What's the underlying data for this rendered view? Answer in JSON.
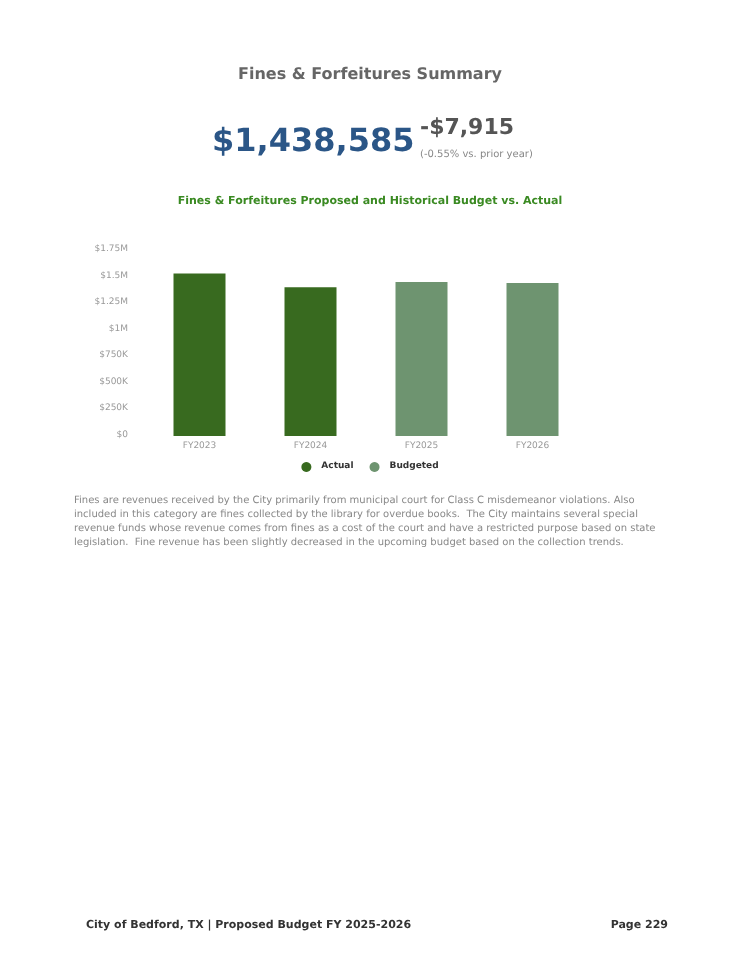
{
  "chart_data": {
    "type": "bar",
    "title": "Fines & Forfeitures Summary",
    "subtitle": "Fines & Forfeitures Proposed and Historical Budget vs. Actual",
    "categories": [
      "FY2023",
      "FY2024",
      "FY2025",
      "FY2026"
    ],
    "series": [
      {
        "name": "Actual",
        "color": "#386a1f",
        "values": [
          1530000,
          1400000,
          null,
          null
        ]
      },
      {
        "name": "Budgeted",
        "color": "#6e9470",
        "values": [
          null,
          null,
          1450000,
          1440000
        ]
      }
    ],
    "ylim": [
      0,
      1750000
    ],
    "yticks": [
      {
        "value": 0,
        "label": "$0"
      },
      {
        "value": 250000,
        "label": "$250K"
      },
      {
        "value": 500000,
        "label": "$500K"
      },
      {
        "value": 750000,
        "label": "$750K"
      },
      {
        "value": 1000000,
        "label": "$1M"
      },
      {
        "value": 1250000,
        "label": "$1.25M"
      },
      {
        "value": 1500000,
        "label": "$1.5M"
      },
      {
        "value": 1750000,
        "label": "$1.75M"
      }
    ],
    "grid": false,
    "legend": "bottom",
    "annotations": [
      "$1,438,585",
      "-$7,915",
      "(-0.55% vs. prior year)",
      "Fines are revenues received by the City primarily from municipal court for Class C misdemeanor violations. Also included in this category are fines collected by the library for overdue books.  The City maintains several special revenue funds whose revenue comes from fines as a cost of the court and have a restricted purpose based on state legislation.  Fine revenue has been slightly decreased in the upcoming budget based on the collection trends.",
      "City of Bedford, TX | Proposed Budget FY 2025-2026",
      "Page 229"
    ]
  }
}
